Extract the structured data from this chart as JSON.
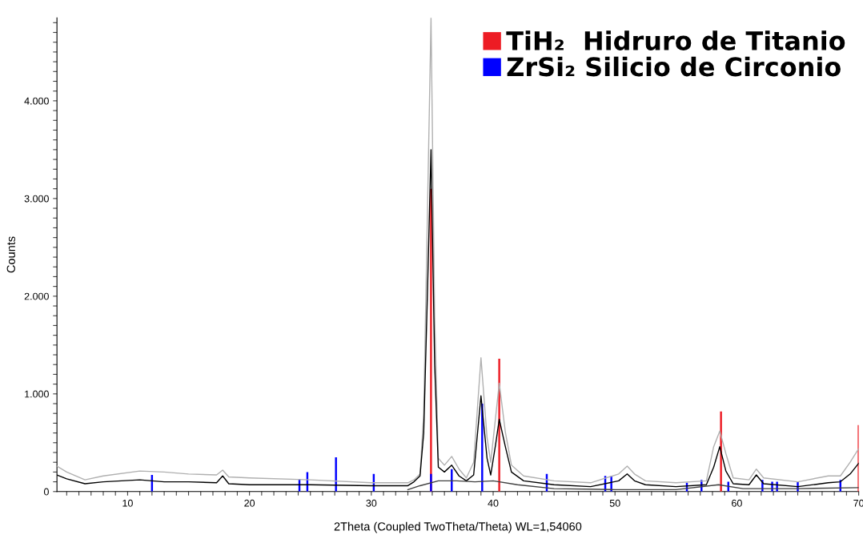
{
  "chart_data": {
    "type": "line",
    "xlabel": "2Theta (Coupled TwoTheta/Theta) WL=1,54060",
    "ylabel": "Counts",
    "xlim": [
      4.2,
      70
    ],
    "ylim": [
      0,
      4850
    ],
    "xticks": [
      {
        "value": 5,
        "label": null
      },
      {
        "value": 6,
        "label": null
      },
      {
        "value": 7,
        "label": null
      },
      {
        "value": 8,
        "label": null
      },
      {
        "value": 9,
        "label": null
      },
      10,
      {
        "value": 11,
        "label": null
      },
      {
        "value": 12,
        "label": null
      },
      {
        "value": 13,
        "label": null
      },
      {
        "value": 14,
        "label": null
      },
      {
        "value": 15,
        "label": null
      },
      {
        "value": 16,
        "label": null
      },
      {
        "value": 17,
        "label": null
      },
      {
        "value": 18,
        "label": null
      },
      {
        "value": 19,
        "label": null
      },
      20,
      {
        "value": 21,
        "label": null
      },
      {
        "value": 22,
        "label": null
      },
      {
        "value": 23,
        "label": null
      },
      {
        "value": 24,
        "label": null
      },
      {
        "value": 25,
        "label": null
      },
      {
        "value": 26,
        "label": null
      },
      {
        "value": 27,
        "label": null
      },
      {
        "value": 28,
        "label": null
      },
      {
        "value": 29,
        "label": null
      },
      30,
      {
        "value": 31,
        "label": null
      },
      {
        "value": 32,
        "label": null
      },
      {
        "value": 33,
        "label": null
      },
      {
        "value": 34,
        "label": null
      },
      {
        "value": 35,
        "label": null
      },
      {
        "value": 36,
        "label": null
      },
      {
        "value": 37,
        "label": null
      },
      {
        "value": 38,
        "label": null
      },
      {
        "value": 39,
        "label": null
      },
      40,
      {
        "value": 41,
        "label": null
      },
      {
        "value": 42,
        "label": null
      },
      {
        "value": 43,
        "label": null
      },
      {
        "value": 44,
        "label": null
      },
      {
        "value": 45,
        "label": null
      },
      {
        "value": 46,
        "label": null
      },
      {
        "value": 47,
        "label": null
      },
      {
        "value": 48,
        "label": null
      },
      {
        "value": 49,
        "label": null
      },
      50,
      {
        "value": 51,
        "label": null
      },
      {
        "value": 52,
        "label": null
      },
      {
        "value": 53,
        "label": null
      },
      {
        "value": 54,
        "label": null
      },
      {
        "value": 55,
        "label": null
      },
      {
        "value": 56,
        "label": null
      },
      {
        "value": 57,
        "label": null
      },
      {
        "value": 58,
        "label": null
      },
      {
        "value": 59,
        "label": null
      },
      60,
      {
        "value": 61,
        "label": null
      },
      {
        "value": 62,
        "label": null
      },
      {
        "value": 63,
        "label": null
      },
      {
        "value": 64,
        "label": null
      },
      {
        "value": 65,
        "label": null
      },
      {
        "value": 66,
        "label": null
      },
      {
        "value": 67,
        "label": null
      },
      {
        "value": 68,
        "label": null
      },
      {
        "value": 69,
        "label": null
      },
      70
    ],
    "yticks": [
      0,
      {
        "value": 100,
        "label": null
      },
      {
        "value": 200,
        "label": null
      },
      {
        "value": 300,
        "label": null
      },
      {
        "value": 400,
        "label": null
      },
      {
        "value": 500,
        "label": null
      },
      {
        "value": 600,
        "label": null
      },
      {
        "value": 700,
        "label": null
      },
      {
        "value": 800,
        "label": null
      },
      {
        "value": 900,
        "label": null
      },
      {
        "value": 1000,
        "label": "1.000"
      },
      {
        "value": 1100,
        "label": null
      },
      {
        "value": 1200,
        "label": null
      },
      {
        "value": 1300,
        "label": null
      },
      {
        "value": 1400,
        "label": null
      },
      {
        "value": 1500,
        "label": null
      },
      {
        "value": 1600,
        "label": null
      },
      {
        "value": 1700,
        "label": null
      },
      {
        "value": 1800,
        "label": null
      },
      {
        "value": 1900,
        "label": null
      },
      {
        "value": 2000,
        "label": "2.000"
      },
      {
        "value": 2100,
        "label": null
      },
      {
        "value": 2200,
        "label": null
      },
      {
        "value": 2300,
        "label": null
      },
      {
        "value": 2400,
        "label": null
      },
      {
        "value": 2500,
        "label": null
      },
      {
        "value": 2600,
        "label": null
      },
      {
        "value": 2700,
        "label": null
      },
      {
        "value": 2800,
        "label": null
      },
      {
        "value": 2900,
        "label": null
      },
      {
        "value": 3000,
        "label": "3.000"
      },
      {
        "value": 3100,
        "label": null
      },
      {
        "value": 3200,
        "label": null
      },
      {
        "value": 3300,
        "label": null
      },
      {
        "value": 3400,
        "label": null
      },
      {
        "value": 3500,
        "label": null
      },
      {
        "value": 3600,
        "label": null
      },
      {
        "value": 3700,
        "label": null
      },
      {
        "value": 3800,
        "label": null
      },
      {
        "value": 3900,
        "label": null
      },
      {
        "value": 4000,
        "label": "4.000"
      },
      {
        "value": 4100,
        "label": null
      },
      {
        "value": 4200,
        "label": null
      },
      {
        "value": 4300,
        "label": null
      },
      {
        "value": 4400,
        "label": null
      },
      {
        "value": 4500,
        "label": null
      },
      {
        "value": 4600,
        "label": null
      },
      {
        "value": 4700,
        "label": null
      },
      {
        "value": 4800,
        "label": null
      }
    ],
    "grid": false,
    "legend": "top right",
    "series": [
      {
        "color": "#b0b0b0",
        "x": [
          4.2,
          5,
          6.5,
          8,
          11,
          13,
          15,
          17.3,
          17.8,
          18.3,
          20,
          25,
          30,
          33,
          33.5,
          34,
          34.3,
          34.6,
          34.9,
          35.2,
          35.5,
          36,
          36.6,
          37.2,
          37.8,
          38.4,
          39,
          39.5,
          39.8,
          40.2,
          40.5,
          41,
          41.5,
          42.5,
          45,
          48,
          50.3,
          51,
          51.6,
          52.5,
          55,
          57.5,
          58.1,
          58.6,
          59.1,
          59.7,
          61,
          61.6,
          62.2,
          65,
          67.5,
          68.5,
          69.3,
          70
        ],
        "values": [
          260,
          200,
          120,
          160,
          210,
          200,
          180,
          170,
          220,
          150,
          140,
          120,
          90,
          90,
          120,
          180,
          800,
          2800,
          4850,
          1800,
          340,
          270,
          360,
          230,
          140,
          300,
          1370,
          550,
          300,
          760,
          1110,
          610,
          270,
          160,
          110,
          90,
          180,
          260,
          180,
          110,
          90,
          110,
          460,
          620,
          390,
          140,
          120,
          230,
          140,
          100,
          160,
          160,
          300,
          440
        ]
      },
      {
        "color": "#000000",
        "x": [
          4.2,
          5,
          6.5,
          8,
          11,
          13,
          15,
          17.3,
          17.8,
          18.3,
          20,
          25,
          30,
          33,
          33.5,
          34,
          34.3,
          34.6,
          34.9,
          35.2,
          35.5,
          36,
          36.6,
          37.2,
          37.8,
          38.4,
          39,
          39.5,
          39.8,
          40.2,
          40.5,
          41,
          41.5,
          42.5,
          45,
          48,
          50.3,
          51,
          51.6,
          52.5,
          55,
          57.5,
          58.1,
          58.6,
          59.1,
          59.7,
          61,
          61.6,
          62.2,
          65,
          67.5,
          68.5,
          69.3,
          70
        ],
        "values": [
          170,
          130,
          80,
          100,
          120,
          100,
          100,
          90,
          160,
          80,
          70,
          70,
          60,
          60,
          100,
          160,
          600,
          2000,
          3500,
          1300,
          250,
          200,
          270,
          160,
          110,
          170,
          980,
          340,
          170,
          480,
          740,
          460,
          200,
          110,
          70,
          50,
          110,
          180,
          110,
          70,
          50,
          70,
          250,
          460,
          210,
          80,
          70,
          170,
          80,
          50,
          90,
          100,
          180,
          290
        ]
      },
      {
        "color": "#404040",
        "x": [
          33,
          34,
          35.5,
          37,
          38.5,
          40,
          42,
          45,
          50,
          55,
          58.5,
          60.5,
          65,
          70
        ],
        "values": [
          20,
          60,
          110,
          110,
          100,
          110,
          70,
          30,
          20,
          20,
          70,
          30,
          30,
          40
        ]
      },
      {
        "type": "bar",
        "name": "TiH₂  Hidruro de Titanio",
        "color": "#ed1c24",
        "x": [
          34.9,
          40.5,
          58.7,
          70
        ],
        "values": [
          3100,
          1360,
          820,
          680
        ]
      },
      {
        "type": "bar",
        "name": "ZrSi₂ Silicio de Circonio",
        "color": "#0000ff",
        "x": [
          12,
          24.1,
          24.75,
          27.1,
          30.2,
          34.9,
          36.6,
          39.1,
          44.4,
          49.2,
          49.7,
          55.9,
          57.1,
          59.3,
          62.1,
          62.9,
          63.3,
          65,
          68.5
        ],
        "values": [
          170,
          130,
          200,
          350,
          180,
          180,
          230,
          900,
          180,
          160,
          160,
          90,
          120,
          100,
          120,
          100,
          100,
          100,
          120
        ]
      }
    ]
  }
}
